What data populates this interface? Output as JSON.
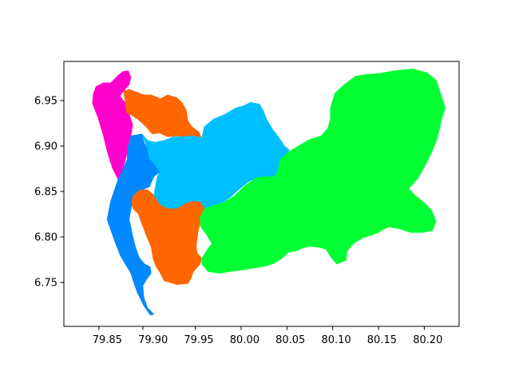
{
  "chart_data": {
    "type": "choropleth",
    "title": "",
    "xlabel": "",
    "ylabel": "",
    "xlim": [
      79.805,
      80.235
    ],
    "ylim": [
      6.705,
      6.99
    ],
    "x_ticks": [
      "79.85",
      "79.90",
      "79.95",
      "80.00",
      "80.05",
      "80.10",
      "80.15",
      "80.20"
    ],
    "y_ticks": [
      "6.75",
      "6.80",
      "6.85",
      "6.90",
      "6.95"
    ],
    "grid": false,
    "legend": "none",
    "regions": [
      {
        "id": "region-magenta-north",
        "color": "#ff00cc",
        "polygon": [
          [
            79.837,
            6.955
          ],
          [
            79.84,
            6.963
          ],
          [
            79.848,
            6.967
          ],
          [
            79.856,
            6.967
          ],
          [
            79.864,
            6.975
          ],
          [
            79.869,
            6.979
          ],
          [
            79.875,
            6.98
          ],
          [
            79.878,
            6.973
          ],
          [
            79.876,
            6.965
          ],
          [
            79.87,
            6.958
          ],
          [
            79.866,
            6.953
          ],
          [
            79.872,
            6.945
          ],
          [
            79.88,
            6.922
          ],
          [
            79.878,
            6.91
          ],
          [
            79.874,
            6.892
          ],
          [
            79.869,
            6.873
          ],
          [
            79.864,
            6.863
          ],
          [
            79.858,
            6.875
          ],
          [
            79.853,
            6.89
          ],
          [
            79.848,
            6.91
          ],
          [
            79.842,
            6.93
          ],
          [
            79.836,
            6.945
          ]
        ]
      },
      {
        "id": "region-blue-coast",
        "color": "#0088ff",
        "polygon": [
          [
            79.864,
            6.863
          ],
          [
            79.869,
            6.873
          ],
          [
            79.874,
            6.885
          ],
          [
            79.874,
            6.895
          ],
          [
            79.878,
            6.91
          ],
          [
            79.89,
            6.912
          ],
          [
            79.892,
            6.903
          ],
          [
            79.896,
            6.896
          ],
          [
            79.898,
            6.886
          ],
          [
            79.905,
            6.878
          ],
          [
            79.909,
            6.871
          ],
          [
            79.903,
            6.866
          ],
          [
            79.898,
            6.855
          ],
          [
            79.89,
            6.852
          ],
          [
            79.883,
            6.846
          ],
          [
            79.879,
            6.836
          ],
          [
            79.876,
            6.82
          ],
          [
            79.878,
            6.812
          ],
          [
            79.88,
            6.802
          ],
          [
            79.883,
            6.79
          ],
          [
            79.887,
            6.779
          ],
          [
            79.893,
            6.772
          ],
          [
            79.899,
            6.769
          ],
          [
            79.9,
            6.762
          ],
          [
            79.896,
            6.757
          ],
          [
            79.891,
            6.749
          ],
          [
            79.892,
            6.736
          ],
          [
            79.896,
            6.725
          ],
          [
            79.903,
            6.718
          ],
          [
            79.899,
            6.717
          ],
          [
            79.892,
            6.727
          ],
          [
            79.885,
            6.741
          ],
          [
            79.88,
            6.755
          ],
          [
            79.878,
            6.762
          ],
          [
            79.873,
            6.77
          ],
          [
            79.866,
            6.782
          ],
          [
            79.859,
            6.8
          ],
          [
            79.852,
            6.82
          ],
          [
            79.856,
            6.84
          ]
        ]
      },
      {
        "id": "region-orange-north",
        "color": "#ff6600",
        "polygon": [
          [
            79.87,
            6.958
          ],
          [
            79.876,
            6.96
          ],
          [
            79.884,
            6.957
          ],
          [
            79.892,
            6.954
          ],
          [
            79.9,
            6.954
          ],
          [
            79.91,
            6.95
          ],
          [
            79.918,
            6.954
          ],
          [
            79.928,
            6.951
          ],
          [
            79.934,
            6.945
          ],
          [
            79.938,
            6.938
          ],
          [
            79.94,
            6.926
          ],
          [
            79.944,
            6.92
          ],
          [
            79.952,
            6.914
          ],
          [
            79.955,
            6.907
          ],
          [
            79.948,
            6.905
          ],
          [
            79.938,
            6.908
          ],
          [
            79.928,
            6.91
          ],
          [
            79.918,
            6.909
          ],
          [
            79.909,
            6.913
          ],
          [
            79.901,
            6.912
          ],
          [
            79.896,
            6.918
          ],
          [
            79.89,
            6.924
          ],
          [
            79.885,
            6.928
          ],
          [
            79.879,
            6.932
          ],
          [
            79.873,
            6.935
          ],
          [
            79.872,
            6.945
          ]
        ]
      },
      {
        "id": "region-orange-south",
        "color": "#ff6600",
        "polygon": [
          [
            79.88,
            6.845
          ],
          [
            79.888,
            6.852
          ],
          [
            79.896,
            6.852
          ],
          [
            79.903,
            6.846
          ],
          [
            79.91,
            6.836
          ],
          [
            79.918,
            6.832
          ],
          [
            79.928,
            6.832
          ],
          [
            79.938,
            6.838
          ],
          [
            79.946,
            6.84
          ],
          [
            79.954,
            6.839
          ],
          [
            79.958,
            6.832
          ],
          [
            79.955,
            6.822
          ],
          [
            79.951,
            6.807
          ],
          [
            79.949,
            6.792
          ],
          [
            79.95,
            6.784
          ],
          [
            79.955,
            6.778
          ],
          [
            79.953,
            6.772
          ],
          [
            79.946,
            6.764
          ],
          [
            79.943,
            6.756
          ],
          [
            79.94,
            6.751
          ],
          [
            79.928,
            6.75
          ],
          [
            79.921,
            6.752
          ],
          [
            79.914,
            6.754
          ],
          [
            79.91,
            6.762
          ],
          [
            79.905,
            6.77
          ],
          [
            79.902,
            6.778
          ],
          [
            79.9,
            6.79
          ],
          [
            79.895,
            6.802
          ],
          [
            79.89,
            6.815
          ],
          [
            79.886,
            6.826
          ],
          [
            79.88,
            6.832
          ],
          [
            79.879,
            6.839
          ]
        ]
      },
      {
        "id": "region-cyan-center",
        "color": "#00bfff",
        "polygon": [
          [
            79.89,
            6.912
          ],
          [
            79.896,
            6.905
          ],
          [
            79.904,
            6.903
          ],
          [
            79.914,
            6.905
          ],
          [
            79.924,
            6.909
          ],
          [
            79.936,
            6.909
          ],
          [
            79.944,
            6.91
          ],
          [
            79.955,
            6.908
          ],
          [
            79.958,
            6.92
          ],
          [
            79.968,
            6.928
          ],
          [
            79.98,
            6.933
          ],
          [
            79.992,
            6.94
          ],
          [
            80.0,
            6.942
          ],
          [
            80.008,
            6.946
          ],
          [
            80.018,
            6.944
          ],
          [
            80.022,
            6.937
          ],
          [
            80.026,
            6.927
          ],
          [
            80.032,
            6.917
          ],
          [
            80.039,
            6.908
          ],
          [
            80.045,
            6.899
          ],
          [
            80.05,
            6.895
          ],
          [
            80.048,
            6.882
          ],
          [
            80.04,
            6.873
          ],
          [
            80.034,
            6.866
          ],
          [
            80.025,
            6.866
          ],
          [
            80.015,
            6.865
          ],
          [
            80.005,
            6.86
          ],
          [
            79.995,
            6.852
          ],
          [
            79.986,
            6.844
          ],
          [
            79.977,
            6.838
          ],
          [
            79.968,
            6.835
          ],
          [
            79.958,
            6.832
          ],
          [
            79.954,
            6.839
          ],
          [
            79.946,
            6.84
          ],
          [
            79.938,
            6.838
          ],
          [
            79.928,
            6.832
          ],
          [
            79.918,
            6.832
          ],
          [
            79.91,
            6.836
          ],
          [
            79.903,
            6.846
          ],
          [
            79.906,
            6.864
          ],
          [
            79.909,
            6.871
          ],
          [
            79.905,
            6.878
          ],
          [
            79.898,
            6.886
          ],
          [
            79.896,
            6.896
          ]
        ]
      },
      {
        "id": "region-green-east",
        "color": "#00ff33",
        "polygon": [
          [
            80.04,
            6.885
          ],
          [
            80.05,
            6.893
          ],
          [
            80.06,
            6.899
          ],
          [
            80.072,
            6.906
          ],
          [
            80.085,
            6.91
          ],
          [
            80.092,
            6.918
          ],
          [
            80.095,
            6.928
          ],
          [
            80.095,
            6.94
          ],
          [
            80.1,
            6.956
          ],
          [
            80.11,
            6.965
          ],
          [
            80.122,
            6.974
          ],
          [
            80.134,
            6.976
          ],
          [
            80.148,
            6.977
          ],
          [
            80.165,
            6.98
          ],
          [
            80.184,
            6.982
          ],
          [
            80.2,
            6.978
          ],
          [
            80.21,
            6.97
          ],
          [
            80.215,
            6.955
          ],
          [
            80.22,
            6.94
          ],
          [
            80.216,
            6.928
          ],
          [
            80.214,
            6.918
          ],
          [
            80.21,
            6.904
          ],
          [
            80.205,
            6.892
          ],
          [
            80.198,
            6.878
          ],
          [
            80.19,
            6.864
          ],
          [
            80.18,
            6.853
          ],
          [
            80.187,
            6.846
          ],
          [
            80.197,
            6.838
          ],
          [
            80.205,
            6.83
          ],
          [
            80.21,
            6.818
          ],
          [
            80.206,
            6.808
          ],
          [
            80.196,
            6.806
          ],
          [
            80.182,
            6.806
          ],
          [
            80.17,
            6.81
          ],
          [
            80.158,
            6.812
          ],
          [
            80.145,
            6.805
          ],
          [
            80.13,
            6.8
          ],
          [
            80.12,
            6.794
          ],
          [
            80.113,
            6.786
          ],
          [
            80.112,
            6.776
          ],
          [
            80.102,
            6.772
          ],
          [
            80.096,
            6.779
          ],
          [
            80.09,
            6.788
          ],
          [
            80.083,
            6.79
          ],
          [
            80.072,
            6.791
          ],
          [
            80.064,
            6.789
          ],
          [
            80.058,
            6.786
          ],
          [
            80.05,
            6.785
          ],
          [
            80.042,
            6.778
          ],
          [
            80.034,
            6.773
          ],
          [
            80.025,
            6.77
          ],
          [
            80.014,
            6.768
          ],
          [
            80.001,
            6.766
          ],
          [
            79.986,
            6.764
          ],
          [
            79.974,
            6.762
          ],
          [
            79.962,
            6.764
          ],
          [
            79.955,
            6.772
          ],
          [
            79.955,
            6.778
          ],
          [
            79.96,
            6.786
          ],
          [
            79.966,
            6.794
          ],
          [
            79.96,
            6.804
          ],
          [
            79.954,
            6.812
          ],
          [
            79.953,
            6.822
          ],
          [
            79.958,
            6.832
          ],
          [
            79.968,
            6.835
          ],
          [
            79.978,
            6.838
          ],
          [
            79.99,
            6.845
          ],
          [
            80.003,
            6.857
          ],
          [
            80.015,
            6.865
          ],
          [
            80.025,
            6.866
          ],
          [
            80.034,
            6.866
          ],
          [
            80.038,
            6.872
          ]
        ]
      },
      {
        "id": "region-cyan-patch",
        "color": "#00bfff",
        "polygon": [
          [
            80.032,
            6.878
          ],
          [
            80.04,
            6.885
          ],
          [
            80.045,
            6.889
          ],
          [
            80.04,
            6.895
          ],
          [
            80.032,
            6.897
          ],
          [
            80.025,
            6.892
          ],
          [
            80.022,
            6.884
          ]
        ]
      }
    ]
  }
}
